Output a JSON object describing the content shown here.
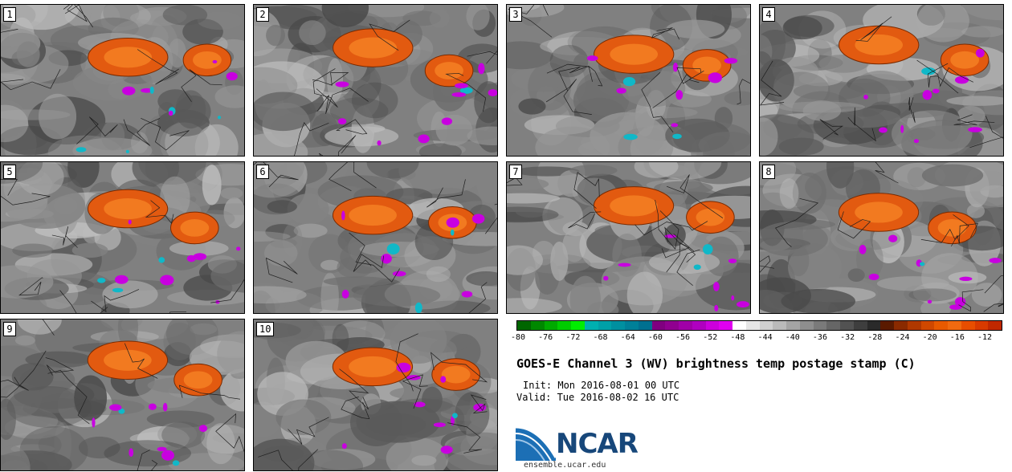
{
  "panels": [
    {
      "label": "1"
    },
    {
      "label": "2"
    },
    {
      "label": "3"
    },
    {
      "label": "4"
    },
    {
      "label": "5"
    },
    {
      "label": "6"
    },
    {
      "label": "7"
    },
    {
      "label": "8"
    },
    {
      "label": "9"
    },
    {
      "label": "10"
    }
  ],
  "colorbar": {
    "ticks": [
      "-80",
      "-76",
      "-72",
      "-68",
      "-64",
      "-60",
      "-56",
      "-52",
      "-48",
      "-44",
      "-40",
      "-36",
      "-32",
      "-28",
      "-24",
      "-20",
      "-16",
      "-12"
    ],
    "colors": [
      "#006600",
      "#008800",
      "#00aa00",
      "#00cc00",
      "#00ee00",
      "#00b0b0",
      "#00a0a8",
      "#0090a0",
      "#008098",
      "#007090",
      "#800080",
      "#900090",
      "#a000a8",
      "#b000c0",
      "#cc00dd",
      "#e000f0",
      "#ffffff",
      "#e6e6e6",
      "#d0d0d0",
      "#bababa",
      "#a4a4a4",
      "#8e8e8e",
      "#7a7a7a",
      "#666666",
      "#525252",
      "#3e3e3e",
      "#2a2a2a",
      "#5a1a00",
      "#8a2a00",
      "#b03800",
      "#d04800",
      "#e85a00",
      "#f06a10",
      "#e84e00",
      "#d83a00",
      "#c02800"
    ]
  },
  "title": "GOES-E Channel 3 (WV) brightness temp postage stamp (C)",
  "init": "Init: Mon 2016-08-01 00 UTC",
  "valid": "Valid: Tue 2016-08-02 16 UTC",
  "logo": {
    "text": "NCAR",
    "color": "#17477a"
  },
  "site": "ensemble.ucar.edu"
}
